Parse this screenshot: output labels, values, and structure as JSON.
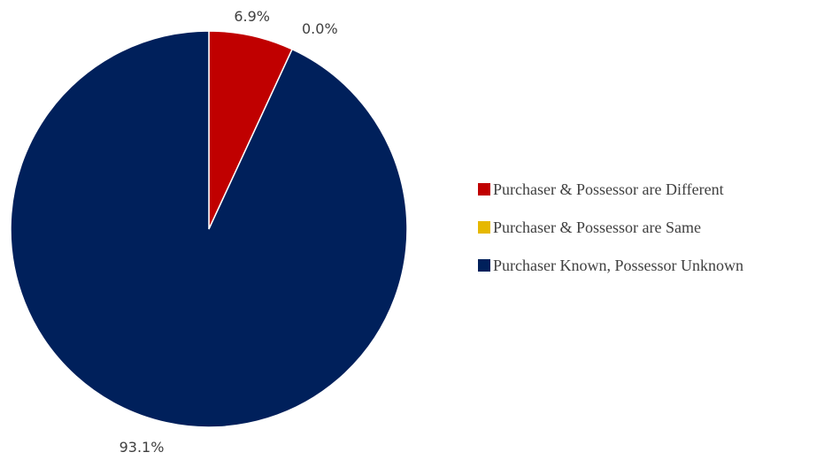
{
  "chart_data": {
    "type": "pie",
    "title": "",
    "legend_position": "right",
    "series": [
      {
        "name": "Purchaser & Possessor are Different",
        "value": 6.9,
        "label": "6.9%",
        "color": "#C00000"
      },
      {
        "name": "Purchaser & Possessor are Same",
        "value": 0.0,
        "label": "0.0%",
        "color": "#E6B800"
      },
      {
        "name": "Purchaser Known, Possessor Unknown",
        "value": 93.1,
        "label": "93.1%",
        "color": "#00205B"
      }
    ]
  }
}
